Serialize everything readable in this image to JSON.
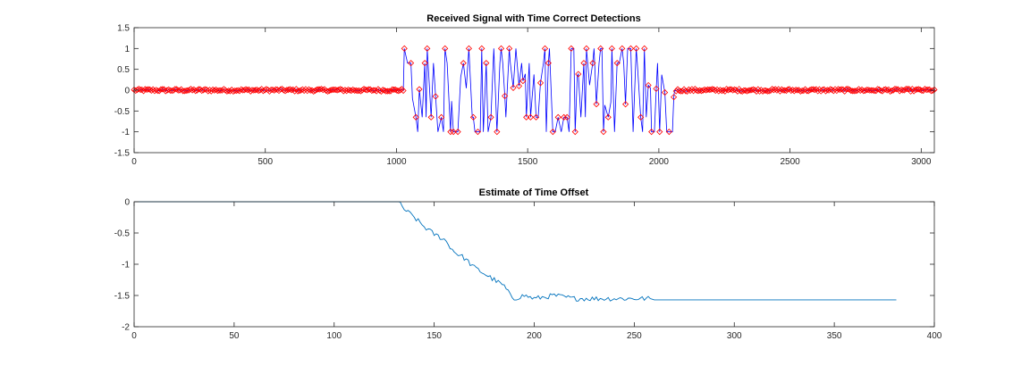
{
  "chart_data": [
    {
      "type": "line",
      "title": "Received Signal with Time Correct Detections",
      "xlabel": "",
      "ylabel": "",
      "xlim": [
        0,
        3050
      ],
      "ylim": [
        -1.5,
        1.5
      ],
      "xticks": [
        0,
        500,
        1000,
        1500,
        2000,
        2500,
        3000
      ],
      "yticks": [
        -1.5,
        -1,
        -0.5,
        0,
        0.5,
        1,
        1.5
      ],
      "ytick_labels": [
        "-1.5",
        "-1",
        "-0.5",
        "0",
        "0.5",
        "1",
        "1.5"
      ],
      "grid": false,
      "legend": "none",
      "colors": {
        "signal": "#0000ff",
        "detections": "#ff0000",
        "axes": "#262626"
      },
      "signal": {
        "noise_amplitude": 0.03,
        "burst_start": 1030,
        "burst_end": 2060,
        "burst_levels": [
          1,
          0.65,
          0,
          -0.65,
          -1
        ],
        "baseline": 0
      },
      "detections": {
        "marker": "diamond",
        "count_total": 600,
        "note_levels": [
          1,
          0.65,
          -0.65,
          -1,
          0
        ]
      }
    },
    {
      "type": "line",
      "title": "Estimate of Time Offset",
      "xlabel": "",
      "ylabel": "",
      "xlim": [
        0,
        400
      ],
      "ylim": [
        -2,
        0
      ],
      "xticks": [
        0,
        50,
        100,
        150,
        200,
        250,
        300,
        350,
        400
      ],
      "yticks": [
        -2,
        -1.5,
        -1,
        -0.5,
        0
      ],
      "ytick_labels": [
        "-2",
        "-1.5",
        "-1",
        "-0.5",
        "0"
      ],
      "grid": false,
      "legend": "none",
      "colors": {
        "line": "#0072bd",
        "axes": "#262626"
      },
      "series": [
        {
          "x": [
            0,
            132,
            135,
            140,
            145,
            150,
            155,
            160,
            165,
            170,
            175,
            180,
            185,
            188,
            190,
            195,
            200,
            210,
            220,
            230,
            240,
            250,
            258,
            260,
            300,
            350,
            381
          ],
          "y": [
            0,
            0,
            -0.12,
            -0.25,
            -0.4,
            -0.52,
            -0.6,
            -0.8,
            -0.9,
            -1.05,
            -1.15,
            -1.25,
            -1.35,
            -1.5,
            -1.55,
            -1.5,
            -1.55,
            -1.5,
            -1.55,
            -1.55,
            -1.55,
            -1.55,
            -1.55,
            -1.57,
            -1.57,
            -1.57,
            -1.57
          ]
        }
      ]
    }
  ]
}
